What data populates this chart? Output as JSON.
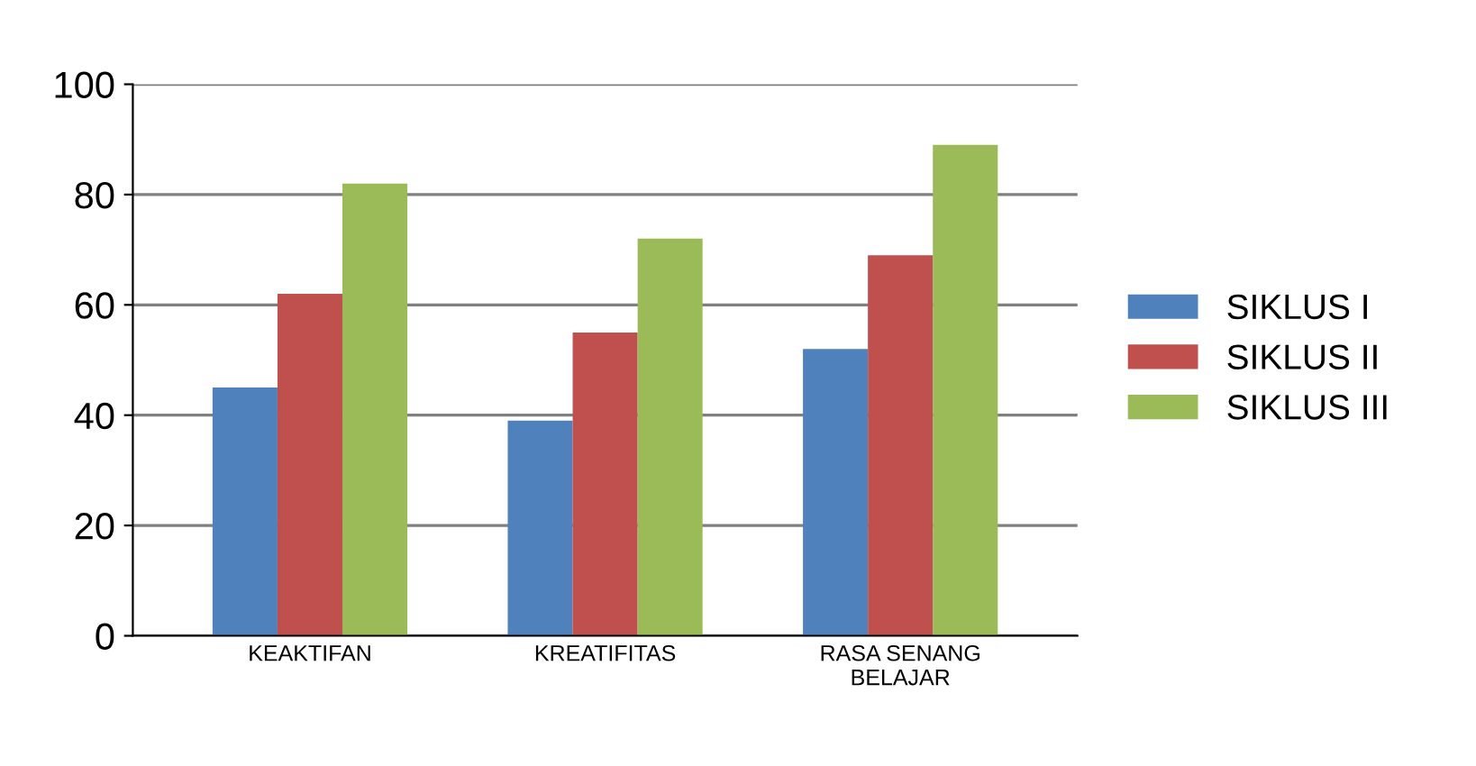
{
  "chart_data": {
    "type": "bar",
    "categories": [
      "KEAKTIFAN",
      "KREATIFITAS",
      "RASA SENANG\nBELAJAR"
    ],
    "series": [
      {
        "name": "SIKLUS I",
        "color": "#4f81bd",
        "values": [
          45,
          39,
          52
        ]
      },
      {
        "name": "SIKLUS II",
        "color": "#c0504d",
        "values": [
          62,
          55,
          69
        ]
      },
      {
        "name": "SIKLUS III",
        "color": "#9bbb59",
        "values": [
          82,
          72,
          89
        ]
      }
    ],
    "ylim": [
      0,
      100
    ],
    "yticks": [
      0,
      20,
      40,
      60,
      80,
      100
    ],
    "grid": "y",
    "legend": "right"
  }
}
